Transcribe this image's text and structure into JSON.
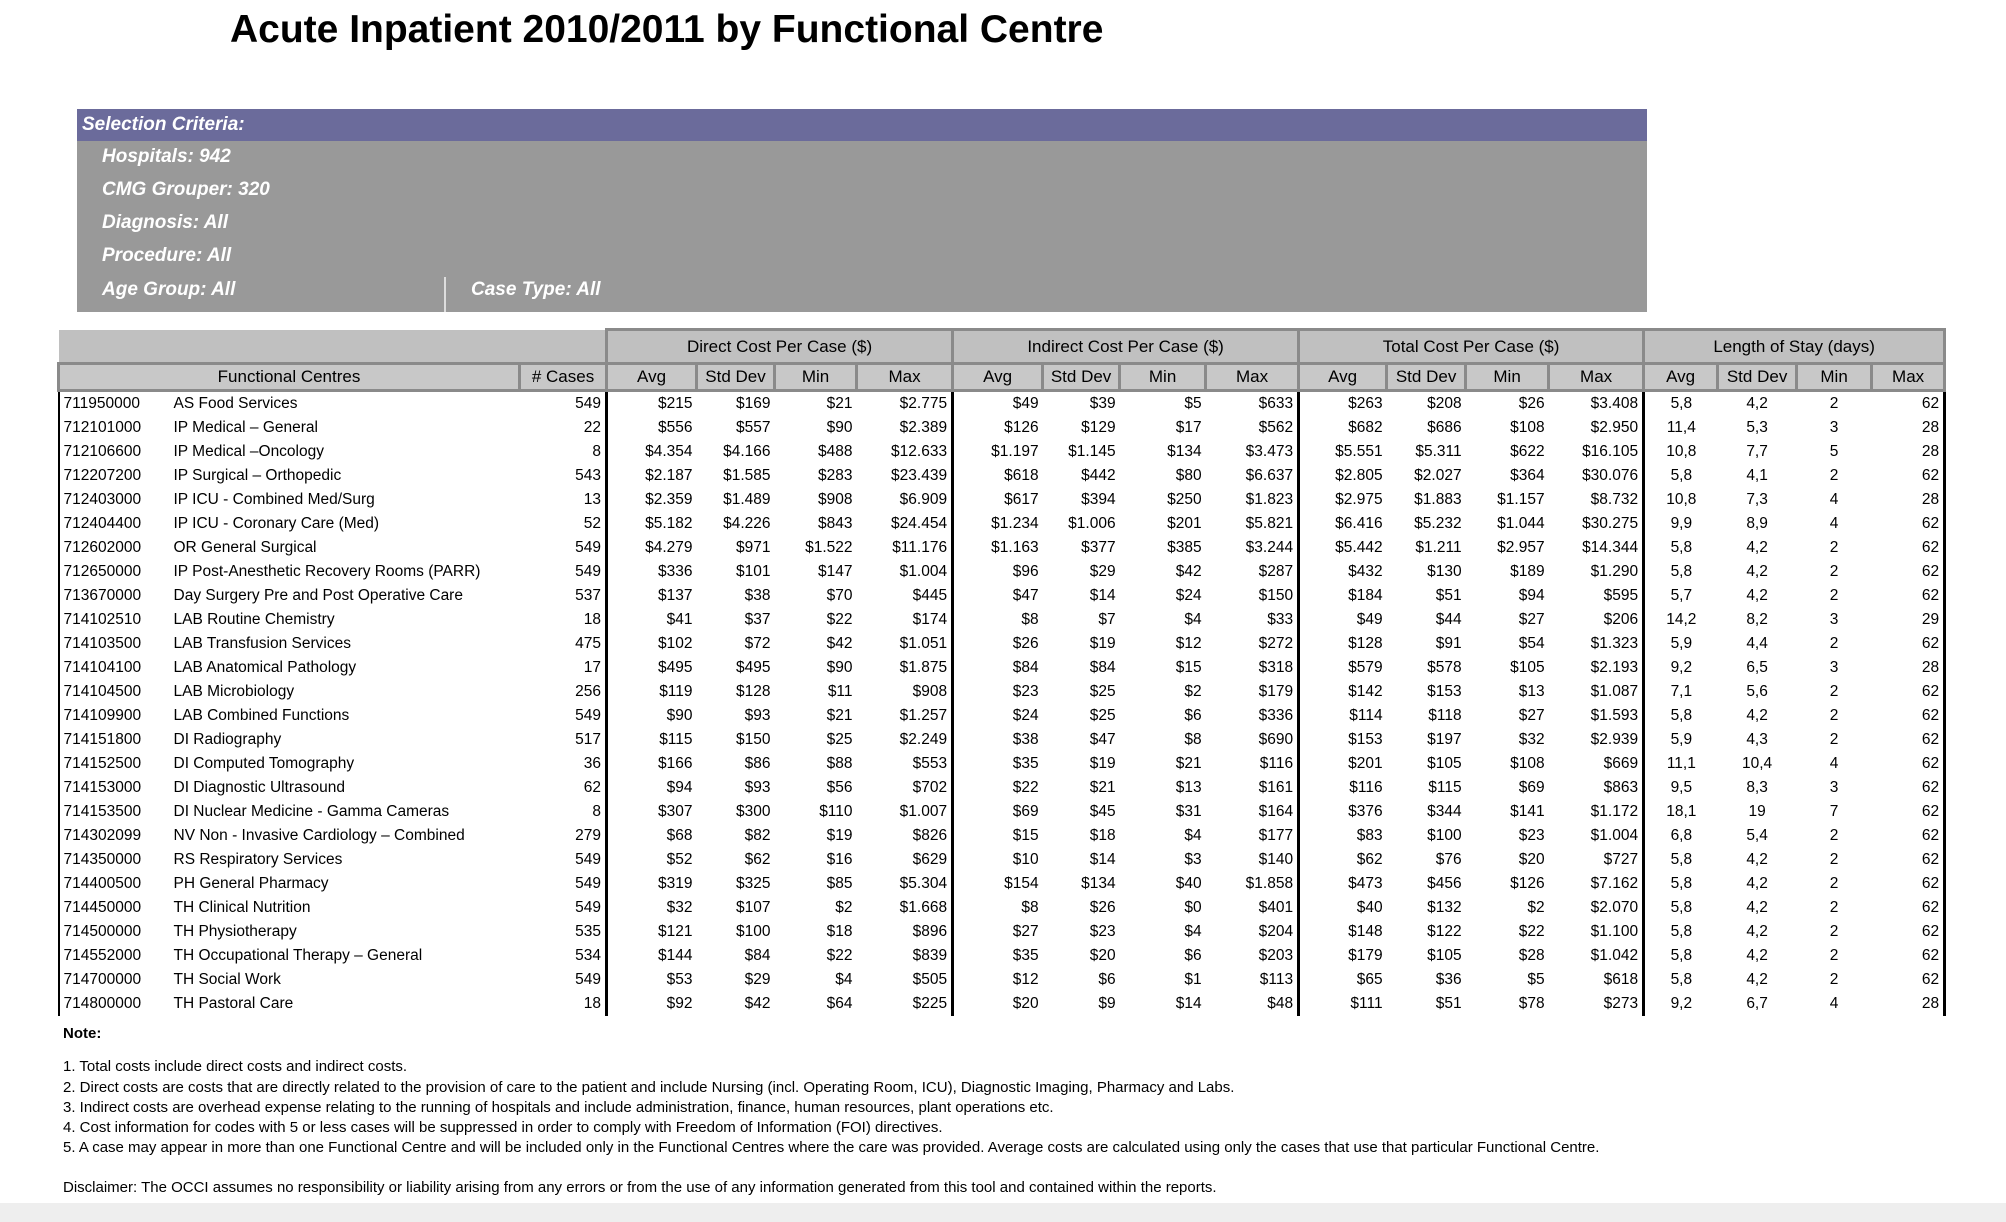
{
  "title": "Acute Inpatient 2010/2011 by Functional Centre",
  "criteria": {
    "header": "Selection Criteria:",
    "hospitals": "Hospitals: 942",
    "cmg": "CMG Grouper: 320",
    "diagnosis": "Diagnosis: All",
    "procedure": "Procedure: All",
    "age": "Age Group: All",
    "case_type": "Case Type: All"
  },
  "table": {
    "groups": [
      "Direct Cost Per Case ($)",
      "Indirect Cost Per Case ($)",
      "Total Cost Per Case ($)",
      "Length of Stay (days)"
    ],
    "columns": [
      "Functional Centres",
      "# Cases",
      "Avg",
      "Std Dev",
      "Min",
      "Max",
      "Avg",
      "Std Dev",
      "Min",
      "Max",
      "Avg",
      "Std Dev",
      "Min",
      "Max",
      "Avg",
      "Std Dev",
      "Min",
      "Max"
    ],
    "rows": [
      [
        "711950000",
        "AS Food Services",
        "549",
        "$215",
        "$169",
        "$21",
        "$2.775",
        "$49",
        "$39",
        "$5",
        "$633",
        "$263",
        "$208",
        "$26",
        "$3.408",
        "5,8",
        "4,2",
        "2",
        "62"
      ],
      [
        "712101000",
        "IP Medical – General",
        "22",
        "$556",
        "$557",
        "$90",
        "$2.389",
        "$126",
        "$129",
        "$17",
        "$562",
        "$682",
        "$686",
        "$108",
        "$2.950",
        "11,4",
        "5,3",
        "3",
        "28"
      ],
      [
        "712106600",
        "IP Medical –Oncology",
        "8",
        "$4.354",
        "$4.166",
        "$488",
        "$12.633",
        "$1.197",
        "$1.145",
        "$134",
        "$3.473",
        "$5.551",
        "$5.311",
        "$622",
        "$16.105",
        "10,8",
        "7,7",
        "5",
        "28"
      ],
      [
        "712207200",
        "IP Surgical – Orthopedic",
        "543",
        "$2.187",
        "$1.585",
        "$283",
        "$23.439",
        "$618",
        "$442",
        "$80",
        "$6.637",
        "$2.805",
        "$2.027",
        "$364",
        "$30.076",
        "5,8",
        "4,1",
        "2",
        "62"
      ],
      [
        "712403000",
        "IP ICU - Combined Med/Surg",
        "13",
        "$2.359",
        "$1.489",
        "$908",
        "$6.909",
        "$617",
        "$394",
        "$250",
        "$1.823",
        "$2.975",
        "$1.883",
        "$1.157",
        "$8.732",
        "10,8",
        "7,3",
        "4",
        "28"
      ],
      [
        "712404400",
        "IP ICU - Coronary Care (Med)",
        "52",
        "$5.182",
        "$4.226",
        "$843",
        "$24.454",
        "$1.234",
        "$1.006",
        "$201",
        "$5.821",
        "$6.416",
        "$5.232",
        "$1.044",
        "$30.275",
        "9,9",
        "8,9",
        "4",
        "62"
      ],
      [
        "712602000",
        "OR General Surgical",
        "549",
        "$4.279",
        "$971",
        "$1.522",
        "$11.176",
        "$1.163",
        "$377",
        "$385",
        "$3.244",
        "$5.442",
        "$1.211",
        "$2.957",
        "$14.344",
        "5,8",
        "4,2",
        "2",
        "62"
      ],
      [
        "712650000",
        "IP Post-Anesthetic Recovery Rooms (PARR)",
        "549",
        "$336",
        "$101",
        "$147",
        "$1.004",
        "$96",
        "$29",
        "$42",
        "$287",
        "$432",
        "$130",
        "$189",
        "$1.290",
        "5,8",
        "4,2",
        "2",
        "62"
      ],
      [
        "713670000",
        "Day Surgery Pre and Post Operative Care",
        "537",
        "$137",
        "$38",
        "$70",
        "$445",
        "$47",
        "$14",
        "$24",
        "$150",
        "$184",
        "$51",
        "$94",
        "$595",
        "5,7",
        "4,2",
        "2",
        "62"
      ],
      [
        "714102510",
        "LAB Routine Chemistry",
        "18",
        "$41",
        "$37",
        "$22",
        "$174",
        "$8",
        "$7",
        "$4",
        "$33",
        "$49",
        "$44",
        "$27",
        "$206",
        "14,2",
        "8,2",
        "3",
        "29"
      ],
      [
        "714103500",
        "LAB Transfusion Services",
        "475",
        "$102",
        "$72",
        "$42",
        "$1.051",
        "$26",
        "$19",
        "$12",
        "$272",
        "$128",
        "$91",
        "$54",
        "$1.323",
        "5,9",
        "4,4",
        "2",
        "62"
      ],
      [
        "714104100",
        "LAB Anatomical Pathology",
        "17",
        "$495",
        "$495",
        "$90",
        "$1.875",
        "$84",
        "$84",
        "$15",
        "$318",
        "$579",
        "$578",
        "$105",
        "$2.193",
        "9,2",
        "6,5",
        "3",
        "28"
      ],
      [
        "714104500",
        "LAB Microbiology",
        "256",
        "$119",
        "$128",
        "$11",
        "$908",
        "$23",
        "$25",
        "$2",
        "$179",
        "$142",
        "$153",
        "$13",
        "$1.087",
        "7,1",
        "5,6",
        "2",
        "62"
      ],
      [
        "714109900",
        "LAB Combined Functions",
        "549",
        "$90",
        "$93",
        "$21",
        "$1.257",
        "$24",
        "$25",
        "$6",
        "$336",
        "$114",
        "$118",
        "$27",
        "$1.593",
        "5,8",
        "4,2",
        "2",
        "62"
      ],
      [
        "714151800",
        "DI Radiography",
        "517",
        "$115",
        "$150",
        "$25",
        "$2.249",
        "$38",
        "$47",
        "$8",
        "$690",
        "$153",
        "$197",
        "$32",
        "$2.939",
        "5,9",
        "4,3",
        "2",
        "62"
      ],
      [
        "714152500",
        "DI Computed Tomography",
        "36",
        "$166",
        "$86",
        "$88",
        "$553",
        "$35",
        "$19",
        "$21",
        "$116",
        "$201",
        "$105",
        "$108",
        "$669",
        "11,1",
        "10,4",
        "4",
        "62"
      ],
      [
        "714153000",
        "DI Diagnostic Ultrasound",
        "62",
        "$94",
        "$93",
        "$56",
        "$702",
        "$22",
        "$21",
        "$13",
        "$161",
        "$116",
        "$115",
        "$69",
        "$863",
        "9,5",
        "8,3",
        "3",
        "62"
      ],
      [
        "714153500",
        "DI Nuclear Medicine - Gamma Cameras",
        "8",
        "$307",
        "$300",
        "$110",
        "$1.007",
        "$69",
        "$45",
        "$31",
        "$164",
        "$376",
        "$344",
        "$141",
        "$1.172",
        "18,1",
        "19",
        "7",
        "62"
      ],
      [
        "714302099",
        "NV Non - Invasive Cardiology – Combined",
        "279",
        "$68",
        "$82",
        "$19",
        "$826",
        "$15",
        "$18",
        "$4",
        "$177",
        "$83",
        "$100",
        "$23",
        "$1.004",
        "6,8",
        "5,4",
        "2",
        "62"
      ],
      [
        "714350000",
        "RS Respiratory Services",
        "549",
        "$52",
        "$62",
        "$16",
        "$629",
        "$10",
        "$14",
        "$3",
        "$140",
        "$62",
        "$76",
        "$20",
        "$727",
        "5,8",
        "4,2",
        "2",
        "62"
      ],
      [
        "714400500",
        "PH General Pharmacy",
        "549",
        "$319",
        "$325",
        "$85",
        "$5.304",
        "$154",
        "$134",
        "$40",
        "$1.858",
        "$473",
        "$456",
        "$126",
        "$7.162",
        "5,8",
        "4,2",
        "2",
        "62"
      ],
      [
        "714450000",
        "TH Clinical Nutrition",
        "549",
        "$32",
        "$107",
        "$2",
        "$1.668",
        "$8",
        "$26",
        "$0",
        "$401",
        "$40",
        "$132",
        "$2",
        "$2.070",
        "5,8",
        "4,2",
        "2",
        "62"
      ],
      [
        "714500000",
        "TH Physiotherapy",
        "535",
        "$121",
        "$100",
        "$18",
        "$896",
        "$27",
        "$23",
        "$4",
        "$204",
        "$148",
        "$122",
        "$22",
        "$1.100",
        "5,8",
        "4,2",
        "2",
        "62"
      ],
      [
        "714552000",
        "TH Occupational Therapy – General",
        "534",
        "$144",
        "$84",
        "$22",
        "$839",
        "$35",
        "$20",
        "$6",
        "$203",
        "$179",
        "$105",
        "$28",
        "$1.042",
        "5,8",
        "4,2",
        "2",
        "62"
      ],
      [
        "714700000",
        "TH Social Work",
        "549",
        "$53",
        "$29",
        "$4",
        "$505",
        "$12",
        "$6",
        "$1",
        "$113",
        "$65",
        "$36",
        "$5",
        "$618",
        "5,8",
        "4,2",
        "2",
        "62"
      ],
      [
        "714800000",
        "TH Pastoral Care",
        "18",
        "$92",
        "$42",
        "$64",
        "$225",
        "$20",
        "$9",
        "$14",
        "$48",
        "$111",
        "$51",
        "$78",
        "$273",
        "9,2",
        "6,7",
        "4",
        "28"
      ]
    ]
  },
  "notes": {
    "heading": "Note:",
    "items": [
      "1. Total costs include direct costs and indirect costs.",
      "2. Direct costs are costs that are directly related to the provision of care to the patient and include Nursing (incl. Operating Room, ICU), Diagnostic Imaging, Pharmacy and Labs.",
      "3. Indirect costs are overhead expense relating to the running of hospitals and include administration, finance, human resources, plant operations etc.",
      "4. Cost information for codes with 5 or less cases will be suppressed in order to comply with Freedom of Information (FOI) directives.",
      "5. A case may appear in more than one Functional Centre and will be included only in the Functional Centres where the care was provided. Average costs are calculated using only the cases that use that particular Functional Centre."
    ]
  },
  "disclaimer": "Disclaimer: The OCCI assumes no responsibility or liability arising from any errors or from the use of any information generated from this tool and contained within the reports."
}
